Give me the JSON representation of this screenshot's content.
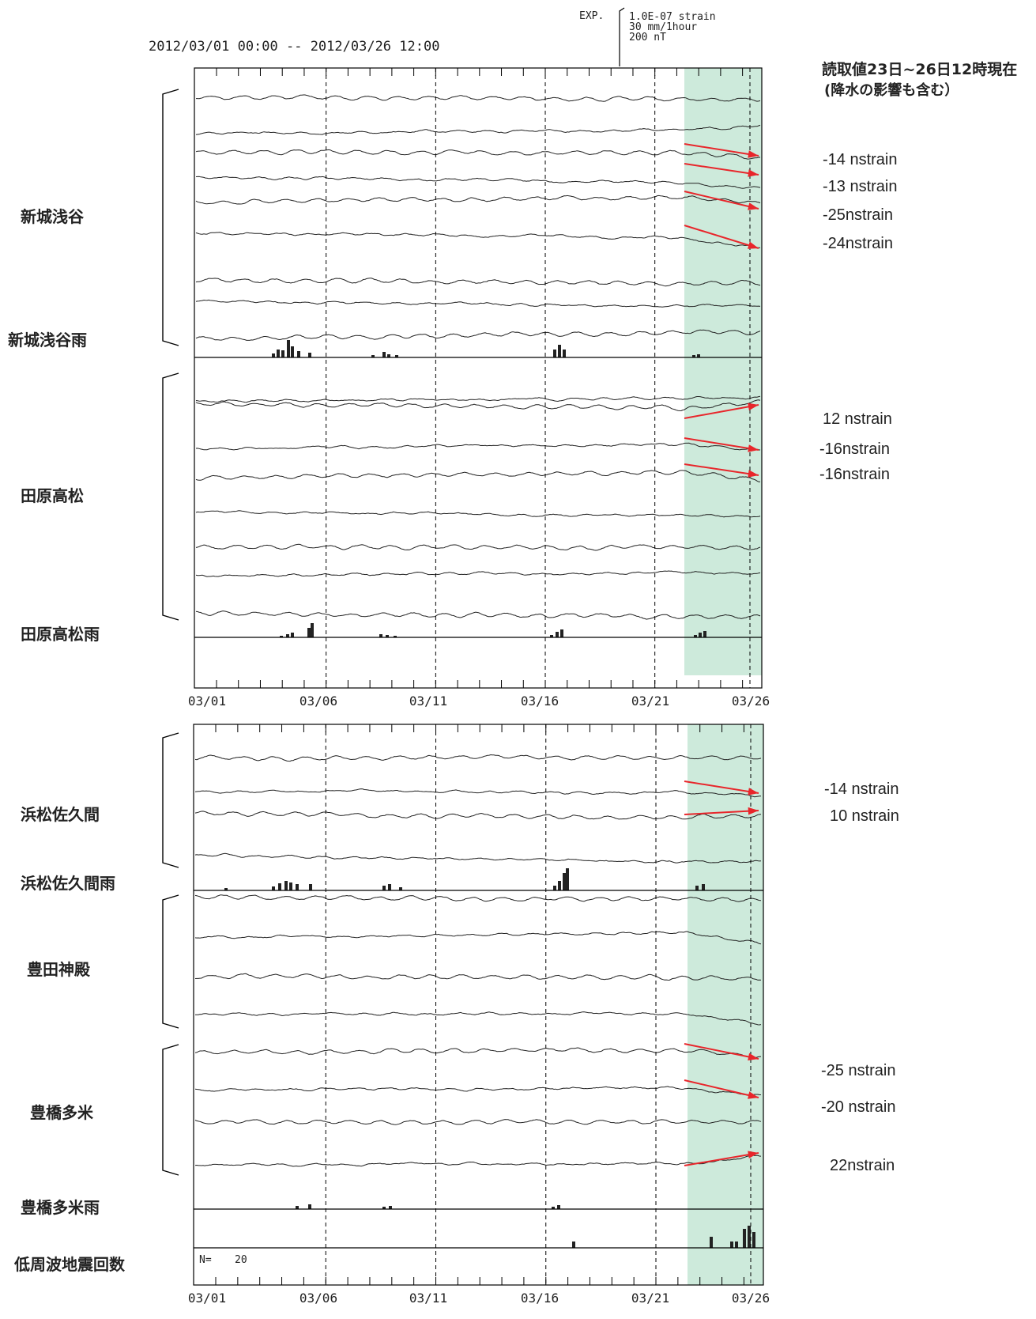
{
  "header": {
    "date_range": "2012/03/01 00:00 -- 2012/03/26 12:00",
    "exp_label": "EXP.",
    "scale_lines": [
      "1.0E-07 strain",
      "30 mm/1hour",
      "200 nT"
    ]
  },
  "note": {
    "line1": "読取値23日~26日12時現在",
    "line2": "(降水の影響も含む）"
  },
  "x_ticks": [
    "03/01",
    "03/06",
    "03/11",
    "03/16",
    "03/21",
    "03/26"
  ],
  "groups": [
    {
      "label": "新城浅谷",
      "rain_label": "新城浅谷雨"
    },
    {
      "label": "田原高松",
      "rain_label": "田原高松雨"
    },
    {
      "label": "浜松佐久間",
      "rain_label": "浜松佐久間雨"
    },
    {
      "label": "豊田神殿"
    },
    {
      "label": "豊橋多米",
      "rain_label": "豊橋多米雨"
    }
  ],
  "lfe": {
    "label": "低周波地震回数",
    "n_label": "N=",
    "n_value": "20"
  },
  "colors": {
    "trace": "#222222",
    "arrow": "#e8262b",
    "highlight": "#cdeadb",
    "axis": "#000000"
  },
  "chart_data": [
    {
      "type": "line",
      "panel": "upper",
      "title": "2012/03/01 00:00 -- 2012/03/26 12:00",
      "x_range": [
        "2012-03-01",
        "2012-03-26 12:00"
      ],
      "x_ticks": [
        "03/01",
        "03/06",
        "03/11",
        "03/16",
        "03/21",
        "03/26"
      ],
      "highlight_range": [
        "2012-03-23",
        "2012-03-26 12:00"
      ],
      "stations": [
        {
          "name": "新城浅谷",
          "readings": [
            "-14 nstrain",
            "-13 nstrain",
            "-25nstrain",
            "-24nstrain"
          ]
        },
        {
          "name": "田原高松",
          "readings": [
            "12 nstrain",
            "-16nstrain",
            "-16nstrain"
          ]
        }
      ]
    },
    {
      "type": "line",
      "panel": "lower",
      "x_range": [
        "2012-03-01",
        "2012-03-26 12:00"
      ],
      "x_ticks": [
        "03/01",
        "03/06",
        "03/11",
        "03/16",
        "03/21",
        "03/26"
      ],
      "highlight_range": [
        "2012-03-23",
        "2012-03-26 12:00"
      ],
      "stations": [
        {
          "name": "浜松佐久間",
          "readings": [
            "-14 nstrain",
            "10 nstrain"
          ]
        },
        {
          "name": "豊田神殿",
          "readings": []
        },
        {
          "name": "豊橋多米",
          "readings": [
            "-25 nstrain",
            "-20 nstrain",
            "22nstrain"
          ]
        }
      ],
      "low_frequency_earthquake_count": {
        "label": "低周波地震回数",
        "N": 20
      }
    }
  ]
}
